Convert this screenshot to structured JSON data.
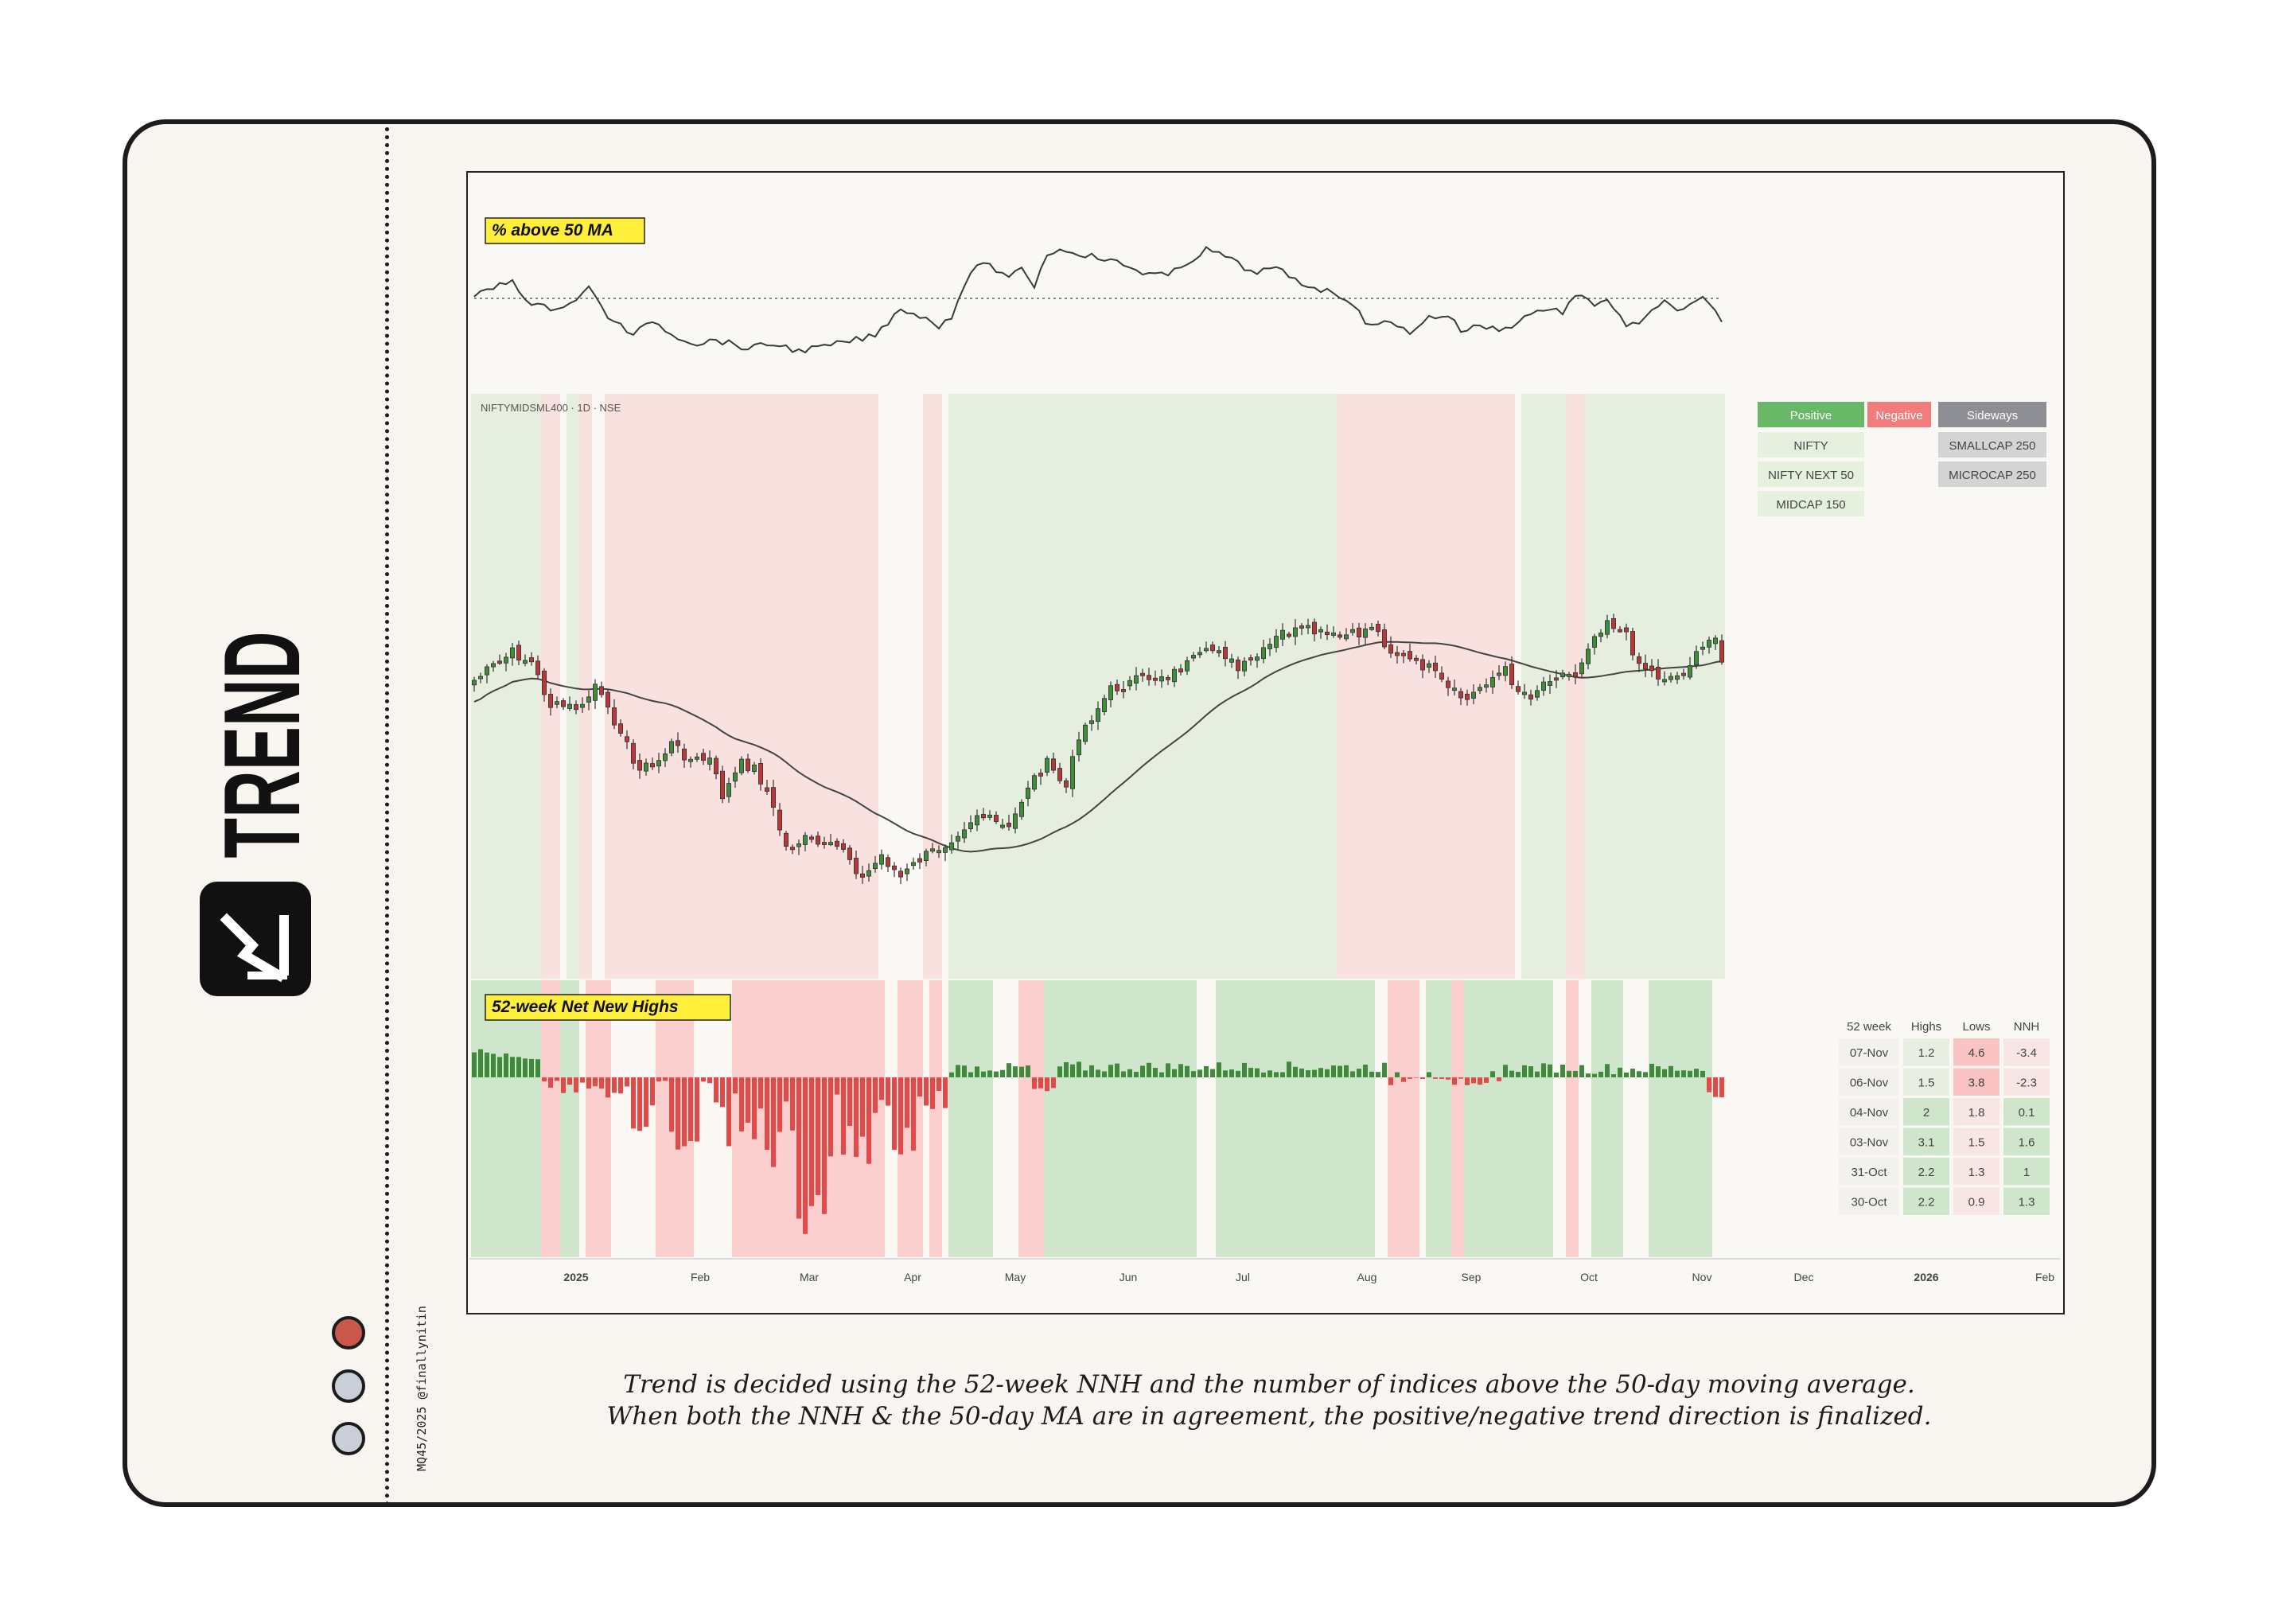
{
  "page": {
    "title": "TREND",
    "credit": "MQ45/2025 @finallynitin",
    "caption_line1": "Trend is decided using the 52-week NNH and the number of indices above the 50-day moving average.",
    "caption_line2": "When both the NNH & the 50-day MA are in agreement, the positive/negative trend direction is finalized.",
    "logo_icon": "trend-chart-icon",
    "dots": [
      {
        "name": "dot-red",
        "color": "#c9574b"
      },
      {
        "name": "dot-grey-1",
        "color": "#c9ced8"
      },
      {
        "name": "dot-grey-2",
        "color": "#c9ced8"
      }
    ]
  },
  "chart_data": {
    "type": "candlestick-with-indicators",
    "symbol_label": "NIFTYMIDSML400 · 1D · NSE",
    "panel_top_label": "% above 50 MA",
    "panel_bottom_label": "52-week Net New Highs",
    "x_axis_labels": [
      "2025",
      "Feb",
      "Mar",
      "Apr",
      "May",
      "Jun",
      "Jul",
      "Aug",
      "Sep",
      "Oct",
      "Nov",
      "Dec",
      "2026",
      "Feb"
    ],
    "x_axis_bold": [
      "2025",
      "2026"
    ],
    "legend": {
      "headers": [
        {
          "label": "Positive",
          "color": "#69b867"
        },
        {
          "label": "Negative",
          "color": "#f07c7c"
        },
        {
          "label": "Sideways",
          "color": "#8d8f95"
        }
      ],
      "positive": [
        "NIFTY",
        "NIFTY NEXT 50",
        "MIDCAP 150"
      ],
      "negative": [],
      "sideways": [
        "SMALLCAP 250",
        "MICROCAP 250"
      ]
    },
    "trend_regimes": [
      {
        "start": 0,
        "end": 10,
        "trend": "positive"
      },
      {
        "start": 11,
        "end": 13,
        "trend": "negative"
      },
      {
        "start": 15,
        "end": 16,
        "trend": "positive"
      },
      {
        "start": 17,
        "end": 18,
        "trend": "negative"
      },
      {
        "start": 21,
        "end": 63,
        "trend": "negative"
      },
      {
        "start": 71,
        "end": 73,
        "trend": "negative"
      },
      {
        "start": 75,
        "end": 135,
        "trend": "positive"
      },
      {
        "start": 136,
        "end": 163,
        "trend": "negative"
      },
      {
        "start": 165,
        "end": 171,
        "trend": "positive"
      },
      {
        "start": 172,
        "end": 174,
        "trend": "negative"
      },
      {
        "start": 175,
        "end": 196,
        "trend": "positive"
      }
    ],
    "nnh_regimes": [
      {
        "start": 0,
        "end": 10,
        "trend": "positive"
      },
      {
        "start": 11,
        "end": 13,
        "trend": "negative"
      },
      {
        "start": 14,
        "end": 16,
        "trend": "positive"
      },
      {
        "start": 18,
        "end": 21,
        "trend": "negative"
      },
      {
        "start": 29,
        "end": 34,
        "trend": "negative"
      },
      {
        "start": 41,
        "end": 64,
        "trend": "negative"
      },
      {
        "start": 67,
        "end": 70,
        "trend": "negative"
      },
      {
        "start": 72,
        "end": 73,
        "trend": "negative"
      },
      {
        "start": 75,
        "end": 81,
        "trend": "positive"
      },
      {
        "start": 86,
        "end": 89,
        "trend": "negative"
      },
      {
        "start": 90,
        "end": 113,
        "trend": "positive"
      },
      {
        "start": 117,
        "end": 141,
        "trend": "positive"
      },
      {
        "start": 144,
        "end": 148,
        "trend": "negative"
      },
      {
        "start": 150,
        "end": 153,
        "trend": "positive"
      },
      {
        "start": 154,
        "end": 155,
        "trend": "negative"
      },
      {
        "start": 156,
        "end": 169,
        "trend": "positive"
      },
      {
        "start": 172,
        "end": 173,
        "trend": "negative"
      },
      {
        "start": 176,
        "end": 180,
        "trend": "positive"
      },
      {
        "start": 185,
        "end": 194,
        "trend": "positive"
      }
    ],
    "nnh_table": {
      "headers": [
        "52 week",
        "Highs",
        "Lows",
        "NNH"
      ],
      "rows": [
        {
          "date": "07-Nov",
          "highs": "1.2",
          "lows": "4.6",
          "nnh": "-3.4"
        },
        {
          "date": "06-Nov",
          "highs": "1.5",
          "lows": "3.8",
          "nnh": "-2.3"
        },
        {
          "date": "04-Nov",
          "highs": "2",
          "lows": "1.8",
          "nnh": "0.1"
        },
        {
          "date": "03-Nov",
          "highs": "3.1",
          "lows": "1.5",
          "nnh": "1.6"
        },
        {
          "date": "31-Oct",
          "highs": "2.2",
          "lows": "1.3",
          "nnh": "1"
        },
        {
          "date": "30-Oct",
          "highs": "2.2",
          "lows": "0.9",
          "nnh": "1.3"
        }
      ]
    },
    "colors": {
      "positive_bg": "#e6efdf",
      "negative_bg": "#f9e1e0",
      "nnh_positive_bg": "#cfe6cd",
      "nnh_negative_bg": "#fccfcf",
      "up_candle": "#3f8a3b",
      "down_candle": "#b5393a",
      "label_yellow": "#ffee3a"
    }
  }
}
